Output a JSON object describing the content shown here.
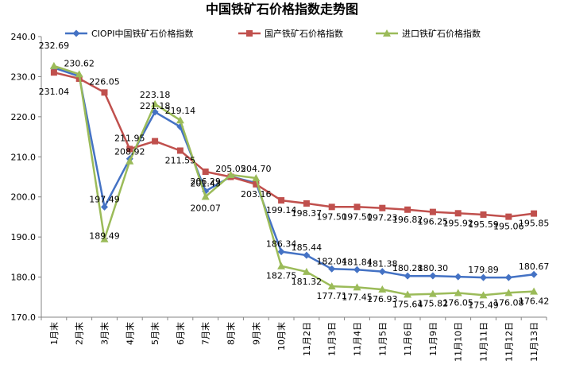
{
  "chart_data": {
    "type": "line",
    "title": "中国铁矿石价格指数走势图",
    "xlabel": "",
    "ylabel": "",
    "ylim": [
      170,
      240
    ],
    "yticks": [
      "170.0",
      "180.0",
      "190.0",
      "200.0",
      "210.0",
      "220.0",
      "230.0",
      "240.0"
    ],
    "grid": false,
    "legend_position": "top",
    "categories": [
      "1月末",
      "2月末",
      "3月末",
      "4月末",
      "5月末",
      "6月末",
      "7月末",
      "8月末",
      "9月末",
      "10月末",
      "11月2日",
      "11月3日",
      "11月4日",
      "11月5日",
      "11月6日",
      "11月9日",
      "11月10日",
      "11月11日",
      "11月12日",
      "11月13日"
    ],
    "series": [
      {
        "name": "CIOPI中国铁矿石价格指数",
        "color": "#4472C4",
        "marker": "diamond",
        "values": [
          232.2,
          230.1,
          197.49,
          209.5,
          221.18,
          217.5,
          201.43,
          205.05,
          203.5,
          186.34,
          185.44,
          182.04,
          181.84,
          181.38,
          180.28,
          180.3,
          180.1,
          179.89,
          179.9,
          180.67
        ],
        "labels": [
          null,
          null,
          "197.49",
          null,
          "221.18",
          null,
          "201.43",
          "205.05",
          null,
          "186.34",
          "185.44",
          "182.04",
          "181.84",
          "181.38",
          "180.28",
          "180.30",
          null,
          "179.89",
          null,
          "180.67"
        ]
      },
      {
        "name": "国产铁矿石价格指数",
        "color": "#C0504D",
        "marker": "square",
        "values": [
          231.04,
          229.5,
          226.05,
          211.95,
          213.9,
          211.55,
          206.29,
          205.0,
          203.16,
          199.14,
          198.37,
          197.5,
          197.5,
          197.23,
          196.82,
          196.25,
          195.92,
          195.59,
          195.06,
          195.85
        ],
        "labels": [
          "231.04",
          null,
          "226.05",
          "211.95",
          null,
          "211.55",
          "206.29",
          null,
          "203.16",
          "199.14",
          "198.37",
          "197.50",
          "197.50",
          "197.23",
          "196.82",
          "196.25",
          "195.92",
          "195.59",
          "195.06",
          "195.85"
        ]
      },
      {
        "name": "进口铁矿石价格指数",
        "color": "#9BBB59",
        "marker": "triangle",
        "values": [
          232.69,
          230.62,
          189.49,
          208.92,
          223.18,
          219.14,
          200.07,
          205.5,
          204.7,
          182.75,
          181.32,
          177.71,
          177.45,
          176.93,
          175.64,
          175.82,
          176.05,
          175.49,
          176.08,
          176.42
        ],
        "labels": [
          "232.69",
          "230.62",
          "189.49",
          "208.92",
          "223.18",
          "219.14",
          "200.07",
          null,
          "204.70",
          "182.75",
          "181.32",
          "177.71",
          "177.45",
          "176.93",
          "175.64",
          "175.82",
          "176.05",
          "175.49",
          "176.08",
          "176.42"
        ]
      }
    ]
  }
}
